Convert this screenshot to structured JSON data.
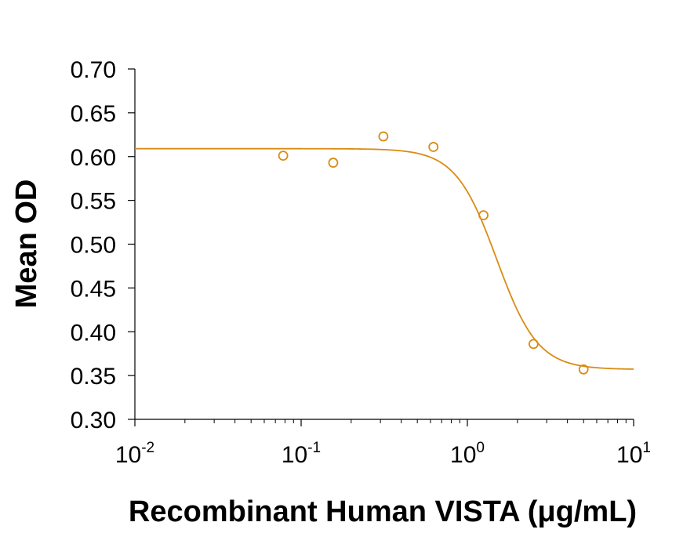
{
  "chart_data": {
    "type": "scatter",
    "title": "",
    "xlabel": "Recombinant Human VISTA (μg/mL)",
    "ylabel": "Mean OD",
    "x_scale": "log10",
    "xlim": [
      0.01,
      10
    ],
    "ylim": [
      0.3,
      0.7
    ],
    "x_ticks": [
      {
        "base": "10",
        "exp": "-2",
        "value": 0.01
      },
      {
        "base": "10",
        "exp": "-1",
        "value": 0.1
      },
      {
        "base": "10",
        "exp": "0",
        "value": 1
      },
      {
        "base": "10",
        "exp": "1",
        "value": 10
      }
    ],
    "y_ticks": [
      "0.30",
      "0.35",
      "0.40",
      "0.45",
      "0.50",
      "0.55",
      "0.60",
      "0.65",
      "0.70"
    ],
    "series": [
      {
        "marker": "open-circle",
        "color": "#D98C14",
        "points": [
          {
            "x": 0.078,
            "y": 0.601
          },
          {
            "x": 0.156,
            "y": 0.593
          },
          {
            "x": 0.3125,
            "y": 0.623
          },
          {
            "x": 0.625,
            "y": 0.611
          },
          {
            "x": 1.25,
            "y": 0.533
          },
          {
            "x": 2.5,
            "y": 0.386
          },
          {
            "x": 5.0,
            "y": 0.357
          }
        ],
        "fit_curve": {
          "model": "4-parameter-logistic",
          "top": 0.609,
          "bottom": 0.357,
          "ec50": 1.5,
          "hill": 3.5,
          "range": [
            0.01,
            10
          ]
        }
      }
    ],
    "grid": false,
    "legend": "none"
  }
}
